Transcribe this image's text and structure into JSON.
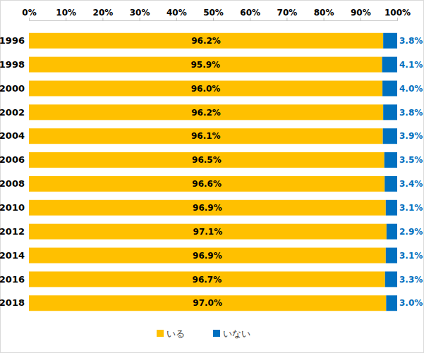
{
  "chart_data": {
    "type": "bar",
    "orientation": "horizontal",
    "stacked": true,
    "data_labels": true,
    "legend": "bottom",
    "categories": [
      "1996",
      "1998",
      "2000",
      "2002",
      "2004",
      "2006",
      "2008",
      "2010",
      "2012",
      "2014",
      "2016",
      "2018"
    ],
    "series": [
      {
        "name": "いる",
        "color": "#ffc000",
        "values": [
          96.2,
          95.9,
          96.0,
          96.2,
          96.1,
          96.5,
          96.6,
          96.9,
          97.1,
          96.9,
          96.7,
          97.0
        ],
        "value_labels": [
          "96.2%",
          "95.9%",
          "96.0%",
          "96.2%",
          "96.1%",
          "96.5%",
          "96.6%",
          "96.9%",
          "97.1%",
          "96.9%",
          "96.7%",
          "97.0%"
        ]
      },
      {
        "name": "いない",
        "color": "#0070c0",
        "values": [
          3.8,
          4.1,
          4.0,
          3.8,
          3.9,
          3.5,
          3.4,
          3.1,
          2.9,
          3.1,
          3.3,
          3.0
        ],
        "value_labels": [
          "3.8%",
          "4.1%",
          "4.0%",
          "3.8%",
          "3.9%",
          "3.5%",
          "3.4%",
          "3.1%",
          "2.9%",
          "3.1%",
          "3.3%",
          "3.0%"
        ]
      }
    ],
    "xlim": [
      0,
      100
    ],
    "xticks": [
      {
        "value": 0,
        "label": "0%"
      },
      {
        "value": 10,
        "label": "10%"
      },
      {
        "value": 20,
        "label": "20%"
      },
      {
        "value": 30,
        "label": "30%"
      },
      {
        "value": 40,
        "label": "40%"
      },
      {
        "value": 50,
        "label": "50%"
      },
      {
        "value": 60,
        "label": "60%"
      },
      {
        "value": 70,
        "label": "70%"
      },
      {
        "value": 80,
        "label": "80%"
      },
      {
        "value": 90,
        "label": "90%"
      },
      {
        "value": 100,
        "label": "100%"
      }
    ]
  }
}
